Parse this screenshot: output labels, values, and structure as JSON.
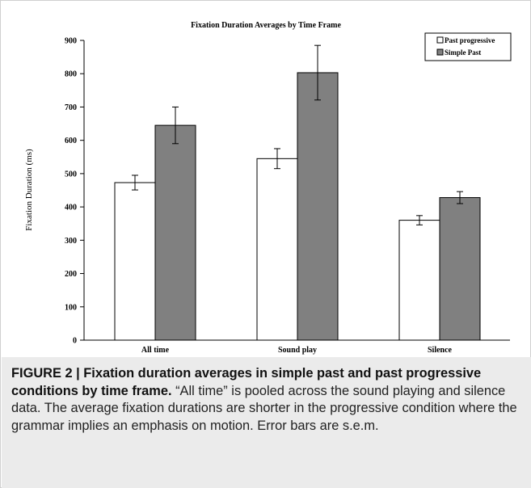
{
  "chart_data": {
    "type": "bar",
    "title": "Fixation Duration Averages by Time Frame",
    "xlabel": "",
    "ylabel": "Fixation Duration (ms)",
    "ylim": [
      0,
      900
    ],
    "yticks": [
      0,
      100,
      200,
      300,
      400,
      500,
      600,
      700,
      800,
      900
    ],
    "categories": [
      "All time",
      "Sound play",
      "Silence"
    ],
    "series": [
      {
        "name": "Past progressive",
        "color": "#ffffff",
        "values": [
          473,
          545,
          360
        ],
        "error": [
          22,
          30,
          14
        ]
      },
      {
        "name": "Simple Past",
        "color": "#808080",
        "values": [
          645,
          803,
          428
        ],
        "error": [
          55,
          82,
          18
        ]
      }
    ],
    "legend_position": "top-right",
    "grid": false
  },
  "caption": {
    "label": "FIGURE 2 | ",
    "bold_text": "Fixation duration averages in simple past and past progressive conditions by time frame.",
    "text": " “All time” is pooled across the sound playing and silence data. The average fixation durations are shorter in the progressive condition where the grammar implies an emphasis on motion. Error bars are s.e.m."
  }
}
